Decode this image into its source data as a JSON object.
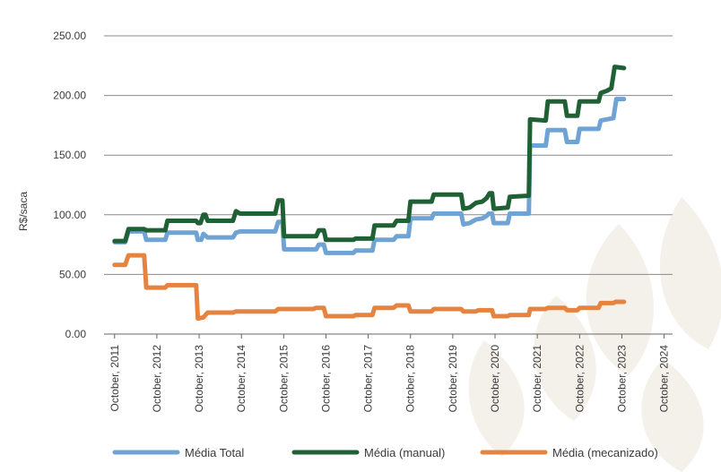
{
  "chart_data": {
    "type": "line",
    "ylabel": "R$/saca",
    "ylim": [
      0,
      250
    ],
    "yticks": [
      "0.00",
      "50.00",
      "100.00",
      "150.00",
      "200.00",
      "250.00"
    ],
    "xlim": [
      2011.5,
      2024.95
    ],
    "xticks": [
      {
        "value": 2011.75,
        "label": "October, 2011"
      },
      {
        "value": 2012.75,
        "label": "October, 2012"
      },
      {
        "value": 2013.75,
        "label": "October, 2013"
      },
      {
        "value": 2014.75,
        "label": "October, 2014"
      },
      {
        "value": 2015.75,
        "label": "October, 2015"
      },
      {
        "value": 2016.75,
        "label": "October, 2016"
      },
      {
        "value": 2017.75,
        "label": "October, 2017"
      },
      {
        "value": 2018.75,
        "label": "October, 2018"
      },
      {
        "value": 2019.75,
        "label": "October, 2019"
      },
      {
        "value": 2020.75,
        "label": "October, 2020"
      },
      {
        "value": 2021.75,
        "label": "October, 2021"
      },
      {
        "value": 2022.75,
        "label": "October, 2022"
      },
      {
        "value": 2023.75,
        "label": "October, 2023"
      },
      {
        "value": 2024.75,
        "label": "October, 2024"
      }
    ],
    "grid": "horizontal",
    "legend_position": "bottom",
    "series": [
      {
        "name": "Média Total",
        "color": "#6fa3d3",
        "points": [
          [
            2011.75,
            77
          ],
          [
            2012.0,
            77
          ],
          [
            2012.08,
            86
          ],
          [
            2012.45,
            86
          ],
          [
            2012.5,
            79
          ],
          [
            2012.95,
            79
          ],
          [
            2013.0,
            85
          ],
          [
            2013.68,
            85
          ],
          [
            2013.72,
            79
          ],
          [
            2013.8,
            79
          ],
          [
            2013.85,
            84
          ],
          [
            2013.95,
            81
          ],
          [
            2014.55,
            81
          ],
          [
            2014.62,
            85
          ],
          [
            2014.72,
            86
          ],
          [
            2015.55,
            86
          ],
          [
            2015.62,
            94
          ],
          [
            2015.72,
            94
          ],
          [
            2015.76,
            71
          ],
          [
            2016.52,
            71
          ],
          [
            2016.58,
            75
          ],
          [
            2016.7,
            75
          ],
          [
            2016.75,
            68
          ],
          [
            2017.4,
            68
          ],
          [
            2017.45,
            70
          ],
          [
            2017.85,
            70
          ],
          [
            2017.9,
            79
          ],
          [
            2018.35,
            79
          ],
          [
            2018.42,
            82
          ],
          [
            2018.7,
            82
          ],
          [
            2018.75,
            97
          ],
          [
            2019.25,
            97
          ],
          [
            2019.3,
            101
          ],
          [
            2019.95,
            101
          ],
          [
            2020.0,
            92
          ],
          [
            2020.15,
            93
          ],
          [
            2020.3,
            96
          ],
          [
            2020.45,
            97
          ],
          [
            2020.55,
            99
          ],
          [
            2020.6,
            101
          ],
          [
            2020.68,
            101
          ],
          [
            2020.72,
            93
          ],
          [
            2021.05,
            93
          ],
          [
            2021.1,
            101
          ],
          [
            2021.55,
            101
          ],
          [
            2021.58,
            158
          ],
          [
            2021.95,
            158
          ],
          [
            2022.0,
            171
          ],
          [
            2022.4,
            171
          ],
          [
            2022.45,
            161
          ],
          [
            2022.7,
            161
          ],
          [
            2022.75,
            172
          ],
          [
            2023.2,
            172
          ],
          [
            2023.25,
            179
          ],
          [
            2023.55,
            181
          ],
          [
            2023.62,
            197
          ],
          [
            2023.8,
            197
          ]
        ]
      },
      {
        "name": "Média (manual)",
        "color": "#1f6134",
        "points": [
          [
            2011.75,
            78
          ],
          [
            2012.0,
            78
          ],
          [
            2012.08,
            88
          ],
          [
            2012.45,
            88
          ],
          [
            2012.5,
            87
          ],
          [
            2012.95,
            87
          ],
          [
            2013.0,
            95
          ],
          [
            2013.68,
            95
          ],
          [
            2013.72,
            93
          ],
          [
            2013.78,
            93
          ],
          [
            2013.85,
            100
          ],
          [
            2013.9,
            100
          ],
          [
            2013.95,
            95
          ],
          [
            2014.55,
            95
          ],
          [
            2014.62,
            103
          ],
          [
            2014.72,
            101
          ],
          [
            2015.55,
            101
          ],
          [
            2015.62,
            112
          ],
          [
            2015.72,
            112
          ],
          [
            2015.76,
            82
          ],
          [
            2016.52,
            82
          ],
          [
            2016.58,
            87
          ],
          [
            2016.7,
            87
          ],
          [
            2016.75,
            79
          ],
          [
            2017.4,
            79
          ],
          [
            2017.45,
            80
          ],
          [
            2017.85,
            80
          ],
          [
            2017.9,
            91
          ],
          [
            2018.35,
            91
          ],
          [
            2018.42,
            95
          ],
          [
            2018.7,
            95
          ],
          [
            2018.75,
            111
          ],
          [
            2019.25,
            111
          ],
          [
            2019.3,
            117
          ],
          [
            2019.95,
            117
          ],
          [
            2020.0,
            105
          ],
          [
            2020.15,
            106
          ],
          [
            2020.3,
            110
          ],
          [
            2020.45,
            111
          ],
          [
            2020.55,
            114
          ],
          [
            2020.62,
            118
          ],
          [
            2020.68,
            118
          ],
          [
            2020.72,
            105
          ],
          [
            2021.05,
            106
          ],
          [
            2021.1,
            115
          ],
          [
            2021.55,
            116
          ],
          [
            2021.58,
            180
          ],
          [
            2021.95,
            179
          ],
          [
            2022.0,
            195
          ],
          [
            2022.4,
            195
          ],
          [
            2022.45,
            183
          ],
          [
            2022.7,
            183
          ],
          [
            2022.75,
            195
          ],
          [
            2023.2,
            195
          ],
          [
            2023.25,
            202
          ],
          [
            2023.4,
            204
          ],
          [
            2023.5,
            206
          ],
          [
            2023.58,
            224
          ],
          [
            2023.8,
            223
          ]
        ]
      },
      {
        "name": "Média (mecanizado)",
        "color": "#e6843f",
        "points": [
          [
            2011.75,
            58
          ],
          [
            2012.0,
            58
          ],
          [
            2012.08,
            66
          ],
          [
            2012.45,
            66
          ],
          [
            2012.5,
            39
          ],
          [
            2012.95,
            39
          ],
          [
            2013.0,
            41
          ],
          [
            2013.68,
            41
          ],
          [
            2013.72,
            13
          ],
          [
            2013.85,
            14
          ],
          [
            2013.95,
            18
          ],
          [
            2014.55,
            18
          ],
          [
            2014.62,
            19
          ],
          [
            2014.72,
            19
          ],
          [
            2015.55,
            19
          ],
          [
            2015.62,
            21
          ],
          [
            2016.45,
            21
          ],
          [
            2016.52,
            22
          ],
          [
            2016.7,
            22
          ],
          [
            2016.75,
            15
          ],
          [
            2017.4,
            15
          ],
          [
            2017.45,
            16
          ],
          [
            2017.85,
            16
          ],
          [
            2017.9,
            22
          ],
          [
            2018.35,
            22
          ],
          [
            2018.42,
            24
          ],
          [
            2018.7,
            24
          ],
          [
            2018.75,
            19
          ],
          [
            2019.25,
            19
          ],
          [
            2019.3,
            21
          ],
          [
            2019.95,
            21
          ],
          [
            2020.0,
            19
          ],
          [
            2020.3,
            19
          ],
          [
            2020.35,
            20
          ],
          [
            2020.68,
            20
          ],
          [
            2020.72,
            15
          ],
          [
            2021.05,
            15
          ],
          [
            2021.1,
            16
          ],
          [
            2021.55,
            16
          ],
          [
            2021.58,
            21
          ],
          [
            2021.95,
            21
          ],
          [
            2022.0,
            22
          ],
          [
            2022.4,
            22
          ],
          [
            2022.45,
            20
          ],
          [
            2022.7,
            20
          ],
          [
            2022.75,
            22
          ],
          [
            2023.2,
            22
          ],
          [
            2023.25,
            26
          ],
          [
            2023.55,
            26
          ],
          [
            2023.6,
            27
          ],
          [
            2023.8,
            27
          ]
        ]
      }
    ]
  }
}
